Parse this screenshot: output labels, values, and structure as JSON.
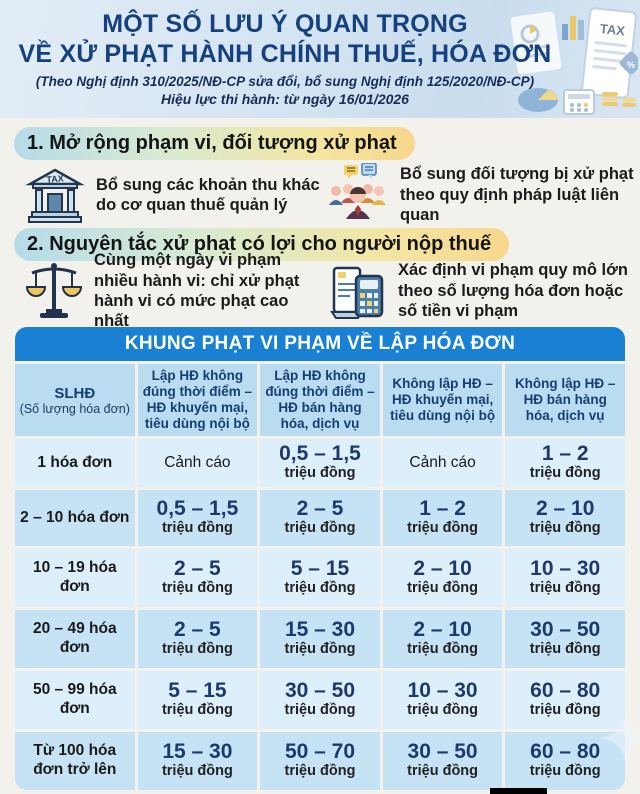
{
  "header": {
    "title_line1": "MỘT SỐ LƯU Ý QUAN TRỌNG",
    "title_line2": "VỀ XỬ PHẠT HÀNH CHÍNH THUẾ, HÓA ĐƠN",
    "subtitle": "(Theo Nghị định 310/2025/NĐ-CP sửa đổi, bổ sung Nghị định 125/2020/NĐ-CP)",
    "effective": "Hiệu lực thi hành: từ ngày 16/01/2026",
    "illustration_icons": [
      "tax-document-icon",
      "bar-chart-icon",
      "pie-chart-icon",
      "calculator-icon",
      "percent-badge-icon",
      "coins-icon"
    ]
  },
  "sections": [
    {
      "heading": "1. Mở rộng phạm vi, đối tượng xử phạt",
      "items": [
        {
          "icon": "tax-building-icon",
          "text": "Bổ sung các khoản thu khác do cơ quan thuế quản lý"
        },
        {
          "icon": "people-group-icon",
          "text": "Bổ sung đối tượng bị xử phạt theo quy định pháp luật liên quan"
        }
      ]
    },
    {
      "heading": "2. Nguyên tắc xử phạt có lợi cho người nộp thuế",
      "items": [
        {
          "icon": "scales-icon",
          "text": "Cùng một ngày vi phạm nhiều hành vi: chỉ xử phạt hành vi có mức phạt cao nhất"
        },
        {
          "icon": "invoice-calculator-icon",
          "text": "Xác định vi phạm quy mô lớn theo số lượng hóa đơn hoặc số tiền vi phạm"
        }
      ]
    }
  ],
  "table": {
    "title": "KHUNG PHẠT VI PHẠM VỀ LẬP HÓA ĐƠN",
    "col1_abbr": "SLHĐ",
    "col1_full": "(Số lượng hóa đơn)",
    "columns": [
      "Lập HĐ không đúng thời điểm – HĐ khuyến mại, tiêu dùng nội bộ",
      "Lập HĐ không đúng thời điểm – HĐ bán hàng hóa, dịch vụ",
      "Không lập HĐ – HĐ khuyến mại, tiêu dùng nội bộ",
      "Không lập HĐ – HĐ bán hàng hóa, dịch vụ"
    ],
    "unit": "triệu đồng",
    "warning_label": "Cảnh cáo",
    "rows": [
      {
        "label": "1 hóa đơn",
        "values": [
          "Cảnh cáo",
          "0,5 – 1,5",
          "Cảnh cáo",
          "1 – 2"
        ]
      },
      {
        "label": "2 – 10 hóa đơn",
        "values": [
          "0,5 – 1,5",
          "2 – 5",
          "1 – 2",
          "2 – 10"
        ]
      },
      {
        "label": "10 – 19 hóa đơn",
        "values": [
          "2 – 5",
          "5 – 15",
          "2 – 10",
          "10 – 30"
        ]
      },
      {
        "label": "20 – 49 hóa đơn",
        "values": [
          "2 – 5",
          "15 – 30",
          "2 – 10",
          "30 – 50"
        ]
      },
      {
        "label": "50 – 99 hóa đơn",
        "values": [
          "5 – 15",
          "30 – 50",
          "10 – 30",
          "60 – 80"
        ]
      },
      {
        "label": "Từ 100 hóa đơn trở lên",
        "values": [
          "15 – 30",
          "50 – 70",
          "30 – 50",
          "60 – 80"
        ]
      }
    ]
  },
  "colors": {
    "table_title_bar": "#1a80d4",
    "table_header_bg": "#b9dcf1",
    "row_odd_bg": "#ddeffa",
    "row_even_bg": "#c5e3f4",
    "value_text": "#1c3a6e",
    "title_text": "#15417e",
    "pill_gradient_start": "#b6dbe9",
    "pill_gradient_end": "#f7d78c"
  }
}
